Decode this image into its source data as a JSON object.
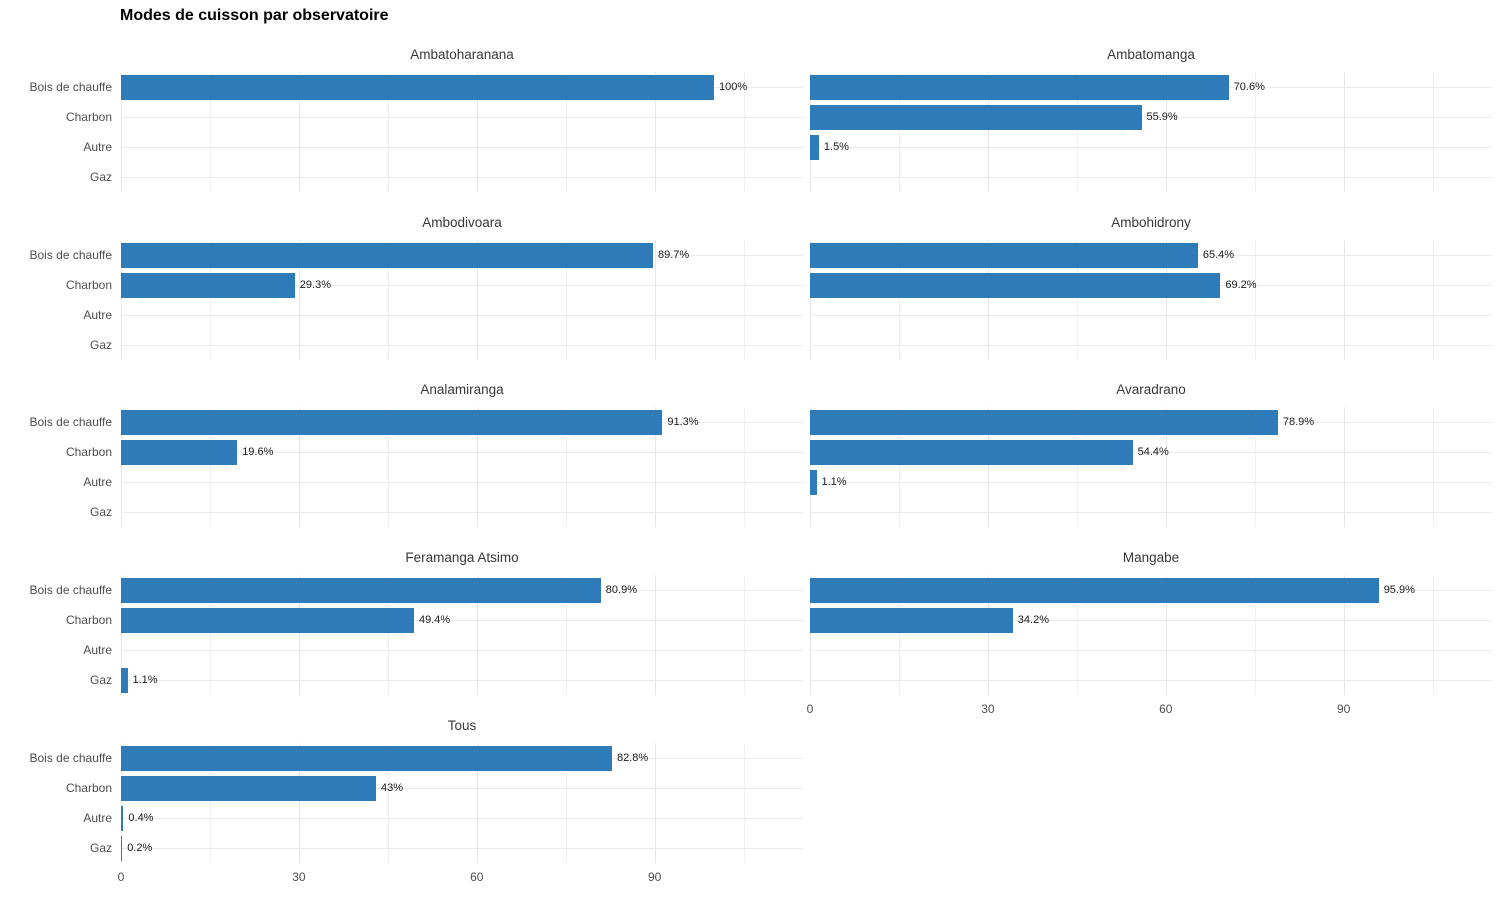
{
  "title": "Modes de cuisson par observatoire",
  "colors": {
    "bar": "#2d7bb9",
    "grid_major": "#e8e8e8",
    "grid_minor": "#f1f1f1",
    "axis_text": "#4d4d4d",
    "strip_text": "#383838",
    "label_text": "#1a1a1a"
  },
  "chart_data": {
    "type": "bar",
    "orientation": "horizontal",
    "title": "Modes de cuisson par observatoire",
    "categories": [
      "Bois de chauffe",
      "Charbon",
      "Autre",
      "Gaz"
    ],
    "value_suffix": "%",
    "xlim": [
      0,
      115
    ],
    "x_ticks": [
      0,
      30,
      60,
      90
    ],
    "x_minor_ticks": [
      15,
      45,
      75,
      105
    ],
    "x_tick_labels": [
      "0",
      "30",
      "60",
      "90"
    ],
    "grid": true,
    "legend": false,
    "facets": [
      {
        "name": "Ambatoharanana",
        "values": [
          100,
          null,
          null,
          null
        ],
        "labels": [
          "100%",
          null,
          null,
          null
        ]
      },
      {
        "name": "Ambatomanga",
        "values": [
          70.6,
          55.9,
          1.5,
          null
        ],
        "labels": [
          "70.6%",
          "55.9%",
          "1.5%",
          null
        ]
      },
      {
        "name": "Ambodivoara",
        "values": [
          89.7,
          29.3,
          null,
          null
        ],
        "labels": [
          "89.7%",
          "29.3%",
          null,
          null
        ]
      },
      {
        "name": "Ambohidrony",
        "values": [
          65.4,
          69.2,
          null,
          null
        ],
        "labels": [
          "65.4%",
          "69.2%",
          null,
          null
        ]
      },
      {
        "name": "Analamiranga",
        "values": [
          91.3,
          19.6,
          null,
          null
        ],
        "labels": [
          "91.3%",
          "19.6%",
          null,
          null
        ]
      },
      {
        "name": "Avaradrano",
        "values": [
          78.9,
          54.4,
          1.1,
          null
        ],
        "labels": [
          "78.9%",
          "54.4%",
          "1.1%",
          null
        ]
      },
      {
        "name": "Feramanga Atsimo",
        "values": [
          80.9,
          49.4,
          null,
          1.1
        ],
        "labels": [
          "80.9%",
          "49.4%",
          null,
          "1.1%"
        ]
      },
      {
        "name": "Mangabe",
        "values": [
          95.9,
          34.2,
          null,
          null
        ],
        "labels": [
          "95.9%",
          "34.2%",
          null,
          null
        ]
      },
      {
        "name": "Tous",
        "values": [
          82.8,
          43,
          0.4,
          0.2
        ],
        "labels": [
          "82.8%",
          "43%",
          "0.4%",
          "0.2%"
        ]
      }
    ]
  }
}
